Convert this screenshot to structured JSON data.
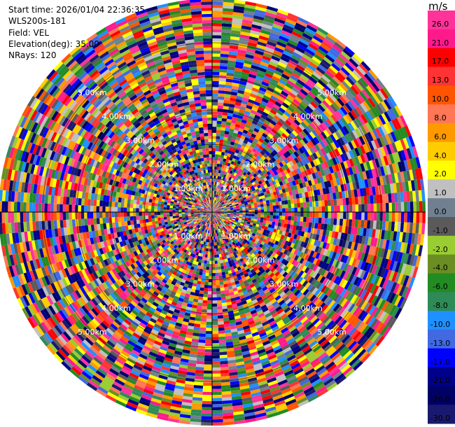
{
  "info": {
    "start_time": "Start time: 2026/01/04 22:36:35",
    "instrument": "WLS200s-181",
    "field": "Field: VEL",
    "elevation": "Elevation(deg): 35.00",
    "nrays": "NRays: 120"
  },
  "colorbar": {
    "unit": "m/s",
    "ticks": [
      "26.0",
      "21.0",
      "17.0",
      "13.0",
      "10.0",
      "8.0",
      "6.0",
      "4.0",
      "2.0",
      "1.0",
      "0.0",
      "-1.0",
      "-2.0",
      "-4.0",
      "-6.0",
      "-8.0",
      "-10.0",
      "-13.0",
      "-17.0",
      "-21.0",
      "-26.0",
      "-30.0"
    ],
    "colors": [
      "#ff3399",
      "#ff1a8c",
      "#ff0000",
      "#ff3333",
      "#ff5500",
      "#ff7755",
      "#ff9900",
      "#ffcc00",
      "#ffff00",
      "#c0c0c0",
      "#708090",
      "#5a5a5a",
      "#9acd32",
      "#6b8e23",
      "#228b22",
      "#2e8b57",
      "#1e90ff",
      "#4169e1",
      "#0000ff",
      "#00008b",
      "#000066",
      "#191970"
    ]
  },
  "chart_data": {
    "type": "heatmap",
    "projection": "polar (PPI scan)",
    "field": "VEL",
    "units": "m/s",
    "n_rays": 120,
    "range_rings_km": [
      1.0,
      2.0,
      3.0,
      4.0,
      5.0
    ],
    "range_ring_labels": [
      "1.00km",
      "2.00km",
      "3.00km",
      "4.00km",
      "5.00km"
    ],
    "max_range_km": 6.3,
    "value_range": [
      -30.0,
      26.0
    ],
    "palette_levels": [
      26.0,
      21.0,
      17.0,
      13.0,
      10.0,
      8.0,
      6.0,
      4.0,
      2.0,
      1.0,
      0.0,
      -1.0,
      -2.0,
      -4.0,
      -6.0,
      -8.0,
      -10.0,
      -13.0,
      -17.0,
      -21.0,
      -26.0,
      -30.0
    ]
  }
}
